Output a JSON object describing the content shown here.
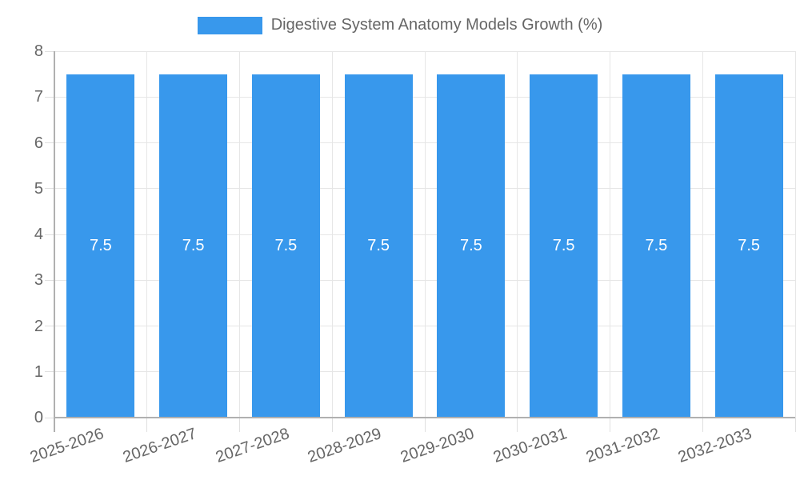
{
  "chart_data": {
    "type": "bar",
    "title": "Digestive System Anatomy Models Growth (%)",
    "categories": [
      "2025-2026",
      "2026-2027",
      "2027-2028",
      "2028-2029",
      "2029-2030",
      "2030-2031",
      "2031-2032",
      "2032-2033"
    ],
    "values": [
      7.5,
      7.5,
      7.5,
      7.5,
      7.5,
      7.5,
      7.5,
      7.5
    ],
    "bar_labels": [
      "7.5",
      "7.5",
      "7.5",
      "7.5",
      "7.5",
      "7.5",
      "7.5",
      "7.5"
    ],
    "xlabel": "",
    "ylabel": "",
    "ylim": [
      0,
      8
    ],
    "yticks": [
      0,
      1,
      2,
      3,
      4,
      5,
      6,
      7,
      8
    ],
    "grid": true,
    "legend_position": "top-center",
    "colors": {
      "bar": "#3898ec",
      "bar_label": "#ffffff",
      "tick_label": "#666666",
      "gridline": "#e6e6e6",
      "axis_line": "#b0b0b0",
      "background": "#ffffff"
    }
  }
}
